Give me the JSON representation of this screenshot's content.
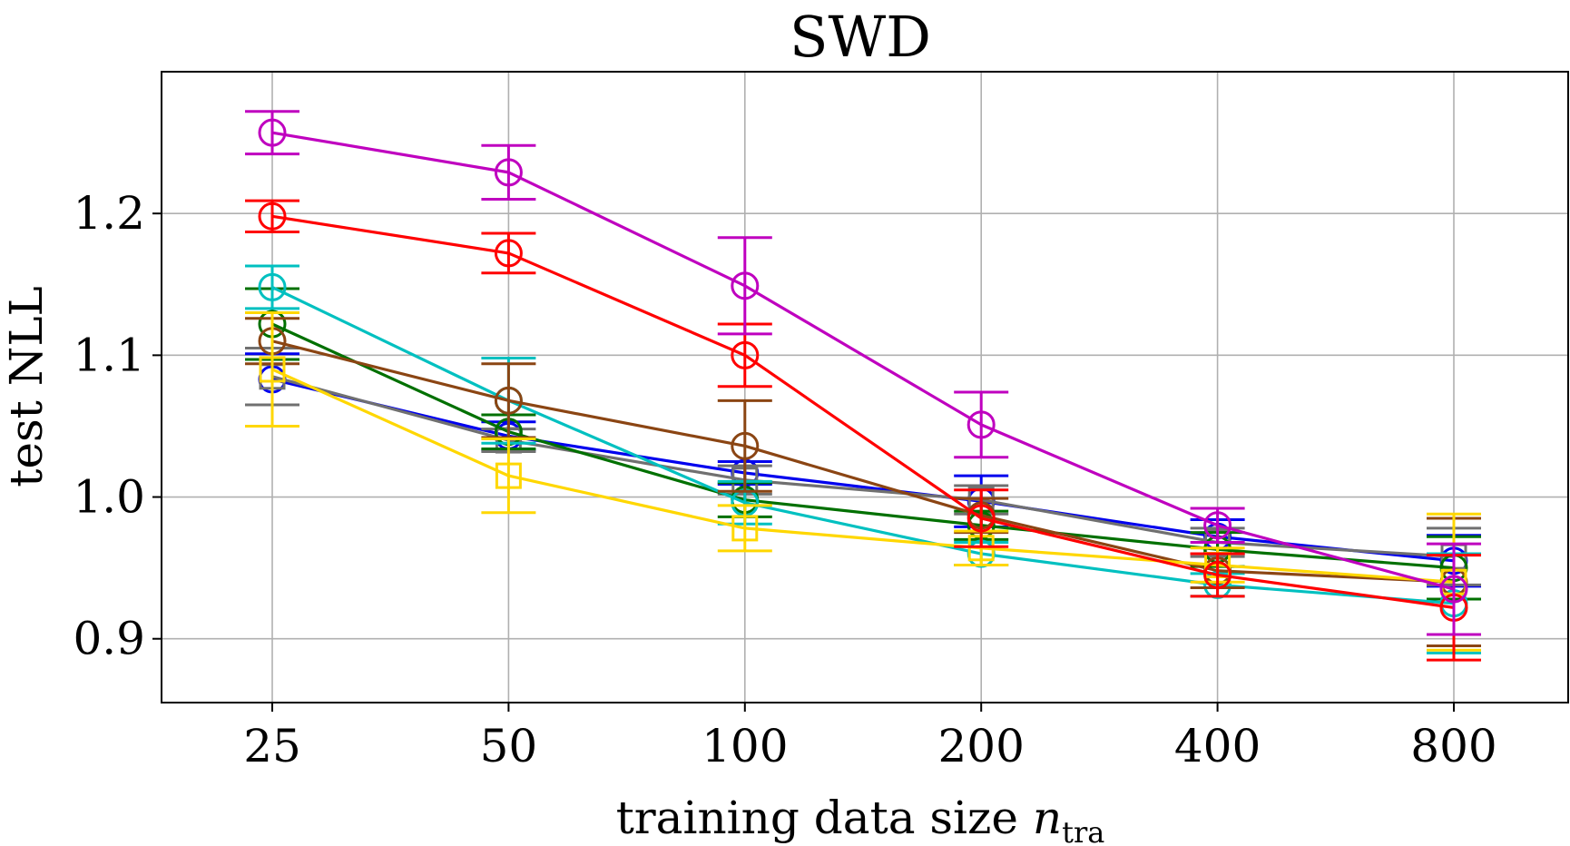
{
  "chart_data": {
    "type": "line",
    "title": "SWD",
    "xlabel_prefix": "training data size ",
    "xlabel_var": "n",
    "xlabel_sub": "tra",
    "ylabel": "test NLL",
    "x": [
      25,
      50,
      100,
      200,
      400,
      800
    ],
    "x_scale": "categorical",
    "x_tick_labels": [
      "25",
      "50",
      "100",
      "200",
      "400",
      "800"
    ],
    "ylim": [
      0.855,
      1.3
    ],
    "y_ticks": [
      0.9,
      1.0,
      1.1,
      1.2
    ],
    "y_tick_labels": [
      "0.9",
      "1.0",
      "1.1",
      "1.2"
    ],
    "grid": true,
    "legend": "none",
    "series": [
      {
        "name": "series-blue",
        "color": "#0000ee",
        "marker": "circle",
        "values": [
          1.083,
          1.043,
          1.017,
          0.997,
          0.972,
          0.955
        ],
        "err": [
          0.018,
          0.01,
          0.008,
          0.018,
          0.012,
          0.018
        ]
      },
      {
        "name": "series-gray",
        "color": "#707070",
        "marker": "square",
        "values": [
          1.085,
          1.04,
          1.012,
          0.998,
          0.968,
          0.958
        ],
        "err": [
          0.02,
          0.008,
          0.01,
          0.01,
          0.01,
          0.02
        ]
      },
      {
        "name": "series-green",
        "color": "#007000",
        "marker": "circle",
        "values": [
          1.122,
          1.046,
          0.998,
          0.98,
          0.963,
          0.95
        ],
        "err": [
          0.025,
          0.012,
          0.012,
          0.01,
          0.012,
          0.022
        ]
      },
      {
        "name": "series-cyan",
        "color": "#00c0c0",
        "marker": "circle",
        "values": [
          1.148,
          1.068,
          0.996,
          0.96,
          0.938,
          0.925
        ],
        "err": [
          0.015,
          0.03,
          0.015,
          0.008,
          0.008,
          0.035
        ]
      },
      {
        "name": "series-brown",
        "color": "#8b4513",
        "marker": "circle",
        "values": [
          1.11,
          1.068,
          1.036,
          0.987,
          0.948,
          0.94
        ],
        "err": [
          0.016,
          0.026,
          0.032,
          0.012,
          0.012,
          0.045
        ]
      },
      {
        "name": "series-yellow",
        "color": "#ffd700",
        "marker": "square",
        "values": [
          1.09,
          1.015,
          0.978,
          0.964,
          0.952,
          0.94
        ],
        "err": [
          0.04,
          0.026,
          0.016,
          0.012,
          0.012,
          0.048
        ]
      },
      {
        "name": "series-red",
        "color": "#ff0000",
        "marker": "circle",
        "values": [
          1.198,
          1.172,
          1.1,
          0.985,
          0.945,
          0.922
        ],
        "err": [
          0.011,
          0.014,
          0.022,
          0.02,
          0.015,
          0.037
        ]
      },
      {
        "name": "series-magenta",
        "color": "#bf00bf",
        "marker": "circle",
        "values": [
          1.257,
          1.229,
          1.149,
          1.051,
          0.98,
          0.935
        ],
        "err": [
          0.015,
          0.019,
          0.034,
          0.023,
          0.012,
          0.032
        ]
      }
    ]
  }
}
